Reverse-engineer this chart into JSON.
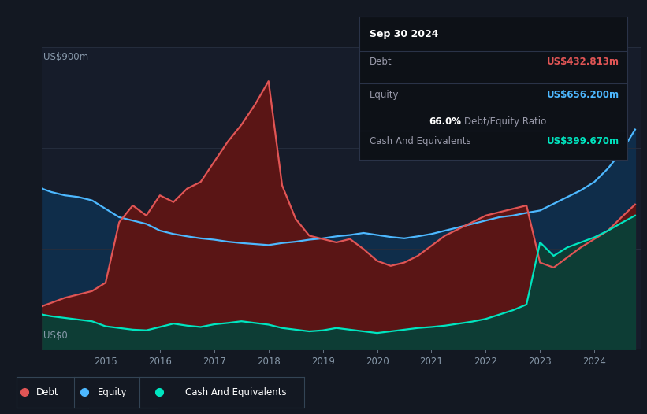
{
  "bg_color": "#131822",
  "plot_bg_color": "#161c2a",
  "grid_color": "#252d3d",
  "ylabel_top": "US$900m",
  "ylabel_bottom": "US$0",
  "debt_color": "#e05555",
  "equity_color": "#4db8ff",
  "cash_color": "#00e5c0",
  "debt_fill_color": "#5a1515",
  "equity_fill_color": "#0f2d4a",
  "cash_fill_color": "#0d3d35",
  "tooltip_bg": "#0d1117",
  "tooltip_border": "#2a3348",
  "tooltip_date": "Sep 30 2024",
  "tooltip_debt_label": "Debt",
  "tooltip_debt_value": "US$432.813m",
  "tooltip_equity_label": "Equity",
  "tooltip_equity_value": "US$656.200m",
  "tooltip_ratio": "66.0%",
  "tooltip_ratio_text": "Debt/Equity Ratio",
  "tooltip_cash_label": "Cash And Equivalents",
  "tooltip_cash_value": "US$399.670m",
  "legend_debt": "Debt",
  "legend_equity": "Equity",
  "legend_cash": "Cash And Equivalents",
  "dates": [
    2013.83,
    2014.0,
    2014.25,
    2014.5,
    2014.75,
    2015.0,
    2015.25,
    2015.5,
    2015.75,
    2016.0,
    2016.25,
    2016.5,
    2016.75,
    2017.0,
    2017.25,
    2017.5,
    2017.75,
    2018.0,
    2018.25,
    2018.5,
    2018.75,
    2019.0,
    2019.25,
    2019.5,
    2019.75,
    2020.0,
    2020.25,
    2020.5,
    2020.75,
    2021.0,
    2021.25,
    2021.5,
    2021.75,
    2022.0,
    2022.25,
    2022.5,
    2022.75,
    2023.0,
    2023.25,
    2023.5,
    2023.75,
    2024.0,
    2024.25,
    2024.5,
    2024.75
  ],
  "debt": [
    130,
    140,
    155,
    165,
    175,
    200,
    380,
    430,
    400,
    460,
    440,
    480,
    500,
    560,
    620,
    670,
    730,
    800,
    490,
    390,
    340,
    330,
    320,
    330,
    300,
    265,
    250,
    260,
    280,
    310,
    340,
    360,
    380,
    400,
    410,
    420,
    430,
    260,
    245,
    275,
    305,
    330,
    355,
    395,
    433
  ],
  "equity": [
    480,
    470,
    460,
    455,
    445,
    420,
    395,
    385,
    375,
    355,
    345,
    338,
    332,
    328,
    322,
    318,
    315,
    312,
    318,
    322,
    328,
    332,
    338,
    342,
    348,
    342,
    336,
    332,
    338,
    345,
    355,
    365,
    375,
    385,
    395,
    400,
    408,
    415,
    435,
    455,
    475,
    500,
    540,
    590,
    656
  ],
  "cash": [
    105,
    100,
    95,
    90,
    85,
    70,
    65,
    60,
    58,
    68,
    78,
    72,
    68,
    76,
    80,
    85,
    80,
    75,
    65,
    60,
    55,
    58,
    65,
    60,
    55,
    50,
    55,
    60,
    65,
    68,
    72,
    78,
    84,
    92,
    105,
    118,
    135,
    320,
    280,
    305,
    320,
    335,
    355,
    378,
    400
  ],
  "ylim": [
    0,
    900
  ],
  "xlim": [
    2013.83,
    2024.85
  ]
}
